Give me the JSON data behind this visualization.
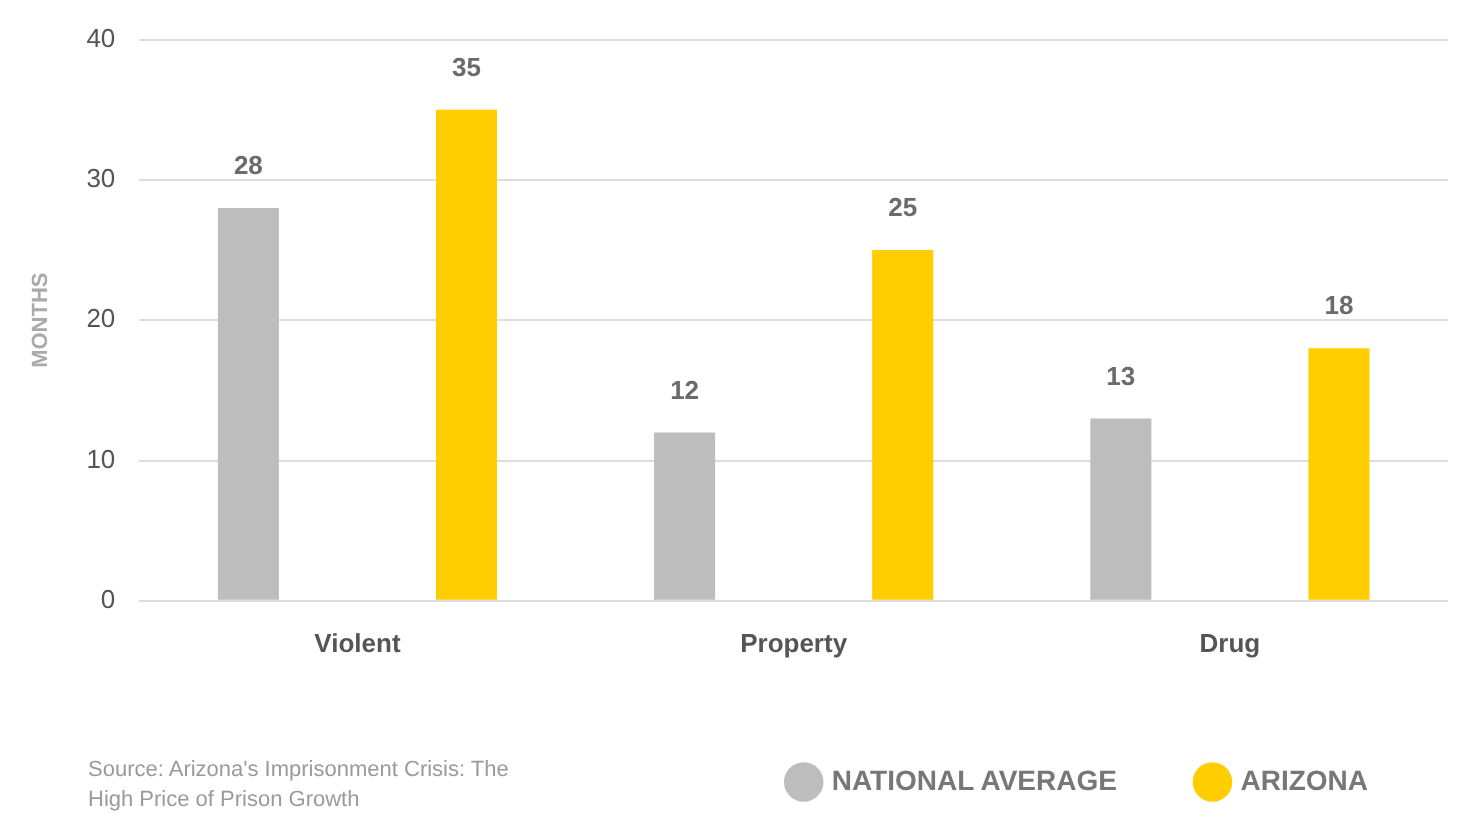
{
  "chart_data": {
    "type": "bar",
    "ylabel": "MONTHS",
    "categories": [
      "Violent",
      "Property",
      "Drug"
    ],
    "series": [
      {
        "name": "NATIONAL AVERAGE",
        "color": "#bdbdbd",
        "values": [
          28,
          12,
          13
        ]
      },
      {
        "name": "ARIZONA",
        "color": "#ffcd00",
        "values": [
          35,
          25,
          18
        ]
      }
    ],
    "ylim": [
      0,
      40
    ],
    "yticks": [
      0,
      10,
      20,
      30,
      40
    ],
    "grid": "y",
    "legend": "bottom right",
    "data_labels": true,
    "annotations": [
      "Source: Arizona's Imprisonment Crisis: The High Price of Prison Growth"
    ]
  }
}
